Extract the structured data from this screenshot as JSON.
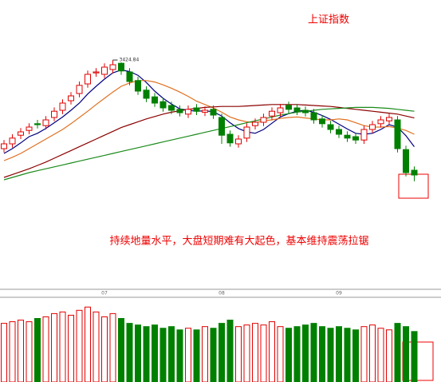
{
  "chart_data": {
    "type": "candlestick",
    "title": "上证指数",
    "annotation": "持续地量水平，大盘短期难有大起色，基本维持震荡拉锯",
    "categories": [
      null,
      null,
      null,
      null,
      null,
      null,
      null,
      null,
      null,
      null,
      null,
      null,
      "07",
      null,
      null,
      null,
      null,
      null,
      null,
      null,
      null,
      null,
      null,
      null,
      null,
      null,
      "08",
      null,
      null,
      null,
      null,
      null,
      null,
      null,
      null,
      null,
      null,
      null,
      null,
      null,
      "09",
      null,
      null,
      null,
      null,
      null,
      null,
      null,
      null,
      null
    ],
    "open": [
      3240,
      3250,
      3268,
      3278,
      3292,
      3288,
      3305,
      3320,
      3340,
      3355,
      3375,
      3398,
      3395,
      3405,
      3418,
      3400,
      3382,
      3362,
      3348,
      3338,
      3330,
      3322,
      3312,
      3325,
      3316,
      3322,
      3305,
      3270,
      3250,
      3262,
      3288,
      3295,
      3308,
      3315,
      3330,
      3325,
      3320,
      3315,
      3302,
      3290,
      3280,
      3268,
      3265,
      3258,
      3280,
      3292,
      3298,
      3300,
      3238,
      3195
    ],
    "high": [
      3258,
      3270,
      3283,
      3293,
      3300,
      3308,
      3326,
      3343,
      3358,
      3380,
      3403,
      3408,
      3418,
      3424.84,
      3420,
      3408,
      3390,
      3370,
      3356,
      3346,
      3338,
      3330,
      3330,
      3333,
      3328,
      3330,
      3313,
      3278,
      3268,
      3293,
      3303,
      3313,
      3326,
      3333,
      3338,
      3333,
      3328,
      3323,
      3310,
      3298,
      3288,
      3276,
      3273,
      3288,
      3298,
      3308,
      3313,
      3308,
      3246,
      3203
    ],
    "low": [
      3232,
      3242,
      3260,
      3270,
      3282,
      3280,
      3297,
      3312,
      3332,
      3347,
      3367,
      3390,
      3387,
      3397,
      3394,
      3372,
      3352,
      3337,
      3327,
      3317,
      3312,
      3307,
      3304,
      3310,
      3308,
      3302,
      3250,
      3244,
      3242,
      3254,
      3280,
      3287,
      3300,
      3307,
      3314,
      3310,
      3307,
      3292,
      3284,
      3272,
      3262,
      3254,
      3250,
      3250,
      3272,
      3284,
      3290,
      3232,
      3182,
      3172
    ],
    "close": [
      3250,
      3262,
      3275,
      3285,
      3290,
      3300,
      3318,
      3335,
      3350,
      3372,
      3395,
      3400,
      3410,
      3415,
      3402,
      3380,
      3360,
      3345,
      3335,
      3325,
      3320,
      3315,
      3322,
      3318,
      3320,
      3310,
      3268,
      3252,
      3260,
      3285,
      3295,
      3305,
      3318,
      3325,
      3322,
      3318,
      3315,
      3300,
      3292,
      3280,
      3270,
      3262,
      3258,
      3280,
      3290,
      3300,
      3305,
      3240,
      3190,
      3185
    ],
    "ylim": [
      2950,
      3550
    ],
    "up_color": "#e00000",
    "down_color": "#008000",
    "lines": [
      {
        "color": "#000080",
        "values": [
          3230,
          3240,
          3252,
          3265,
          3272,
          3282,
          3294,
          3306,
          3320,
          3335,
          3354,
          3370,
          3385,
          3398,
          3404,
          3401,
          3393,
          3378,
          3360,
          3345,
          3333,
          3323,
          3320,
          3318,
          3319,
          3317,
          3308,
          3294,
          3282,
          3275,
          3272,
          3280,
          3293,
          3306,
          3313,
          3318,
          3320,
          3316,
          3309,
          3301,
          3291,
          3281,
          3272,
          3270,
          3272,
          3280,
          3290,
          3285,
          3267,
          3244
        ]
      },
      {
        "color": "#e07020",
        "values": [
          3215,
          3222,
          3230,
          3240,
          3250,
          3260,
          3270,
          3280,
          3292,
          3305,
          3318,
          3332,
          3345,
          3358,
          3370,
          3377,
          3382,
          3382,
          3379,
          3373,
          3366,
          3358,
          3349,
          3339,
          3332,
          3325,
          3316,
          3306,
          3300,
          3296,
          3294,
          3298,
          3300,
          3303,
          3305,
          3306,
          3304,
          3302,
          3300,
          3300,
          3302,
          3300,
          3294,
          3288,
          3285,
          3285,
          3286,
          3283,
          3278,
          3270
        ]
      },
      {
        "color": "#8b0000",
        "values": [
          3180,
          3186,
          3192,
          3198,
          3205,
          3212,
          3220,
          3228,
          3236,
          3244,
          3252,
          3260,
          3268,
          3276,
          3284,
          3290,
          3296,
          3302,
          3307,
          3312,
          3316,
          3319,
          3322,
          3324,
          3326,
          3327,
          3328,
          3328,
          3328,
          3329,
          3330,
          3331,
          3332,
          3332,
          3332,
          3332,
          3331,
          3330,
          3329,
          3328,
          3326,
          3324,
          3322,
          3320,
          3318,
          3316,
          3314,
          3312,
          3308,
          3304
        ]
      },
      {
        "color": "#1a8a1a",
        "values": [
          3175,
          3180,
          3185,
          3190,
          3194,
          3198,
          3202,
          3206,
          3210,
          3214,
          3218,
          3222,
          3226,
          3230,
          3234,
          3238,
          3242,
          3246,
          3250,
          3254,
          3258,
          3262,
          3266,
          3270,
          3274,
          3278,
          3282,
          3286,
          3290,
          3294,
          3298,
          3302,
          3306,
          3310,
          3313,
          3316,
          3318,
          3320,
          3322,
          3323,
          3324,
          3325,
          3326,
          3326,
          3326,
          3325,
          3324,
          3322,
          3320,
          3318
        ]
      }
    ],
    "volume": {
      "ylim": [
        0,
        2600
      ],
      "values": [
        1800,
        1850,
        1900,
        1850,
        1950,
        2000,
        2100,
        2150,
        2050,
        2200,
        2300,
        2150,
        2000,
        2100,
        1950,
        1800,
        1750,
        1700,
        1750,
        1650,
        1700,
        1600,
        1650,
        1600,
        1700,
        1650,
        1800,
        1900,
        1700,
        1750,
        1800,
        1750,
        1850,
        1700,
        1650,
        1700,
        1750,
        1800,
        1700,
        1650,
        1700,
        1650,
        1600,
        1700,
        1750,
        1650,
        1600,
        1800,
        1700,
        1550
      ]
    }
  }
}
